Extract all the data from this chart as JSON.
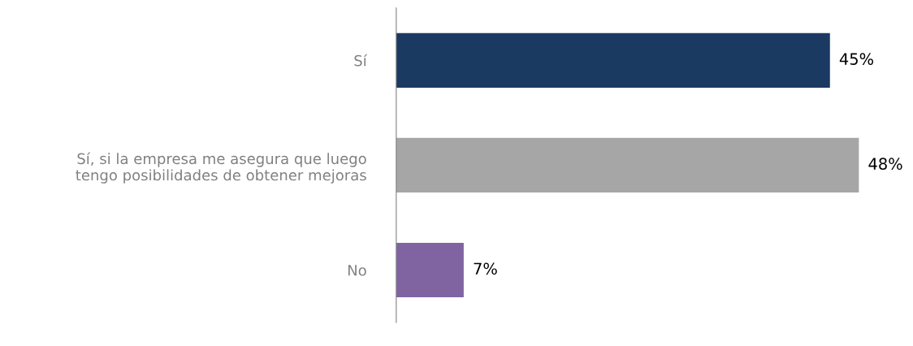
{
  "chart_data": {
    "type": "bar",
    "orientation": "horizontal",
    "categories": [
      "Sí",
      "Sí, si la empresa me asegura que luego\ntengo posibilidades de obtener mejoras",
      "No"
    ],
    "values": [
      45,
      48,
      7
    ],
    "colors": [
      "#1b3a62",
      "#a6a6a6",
      "#8064a2"
    ],
    "value_labels": [
      "45%",
      "48%",
      "7%"
    ],
    "grid": false,
    "legend": false
  }
}
